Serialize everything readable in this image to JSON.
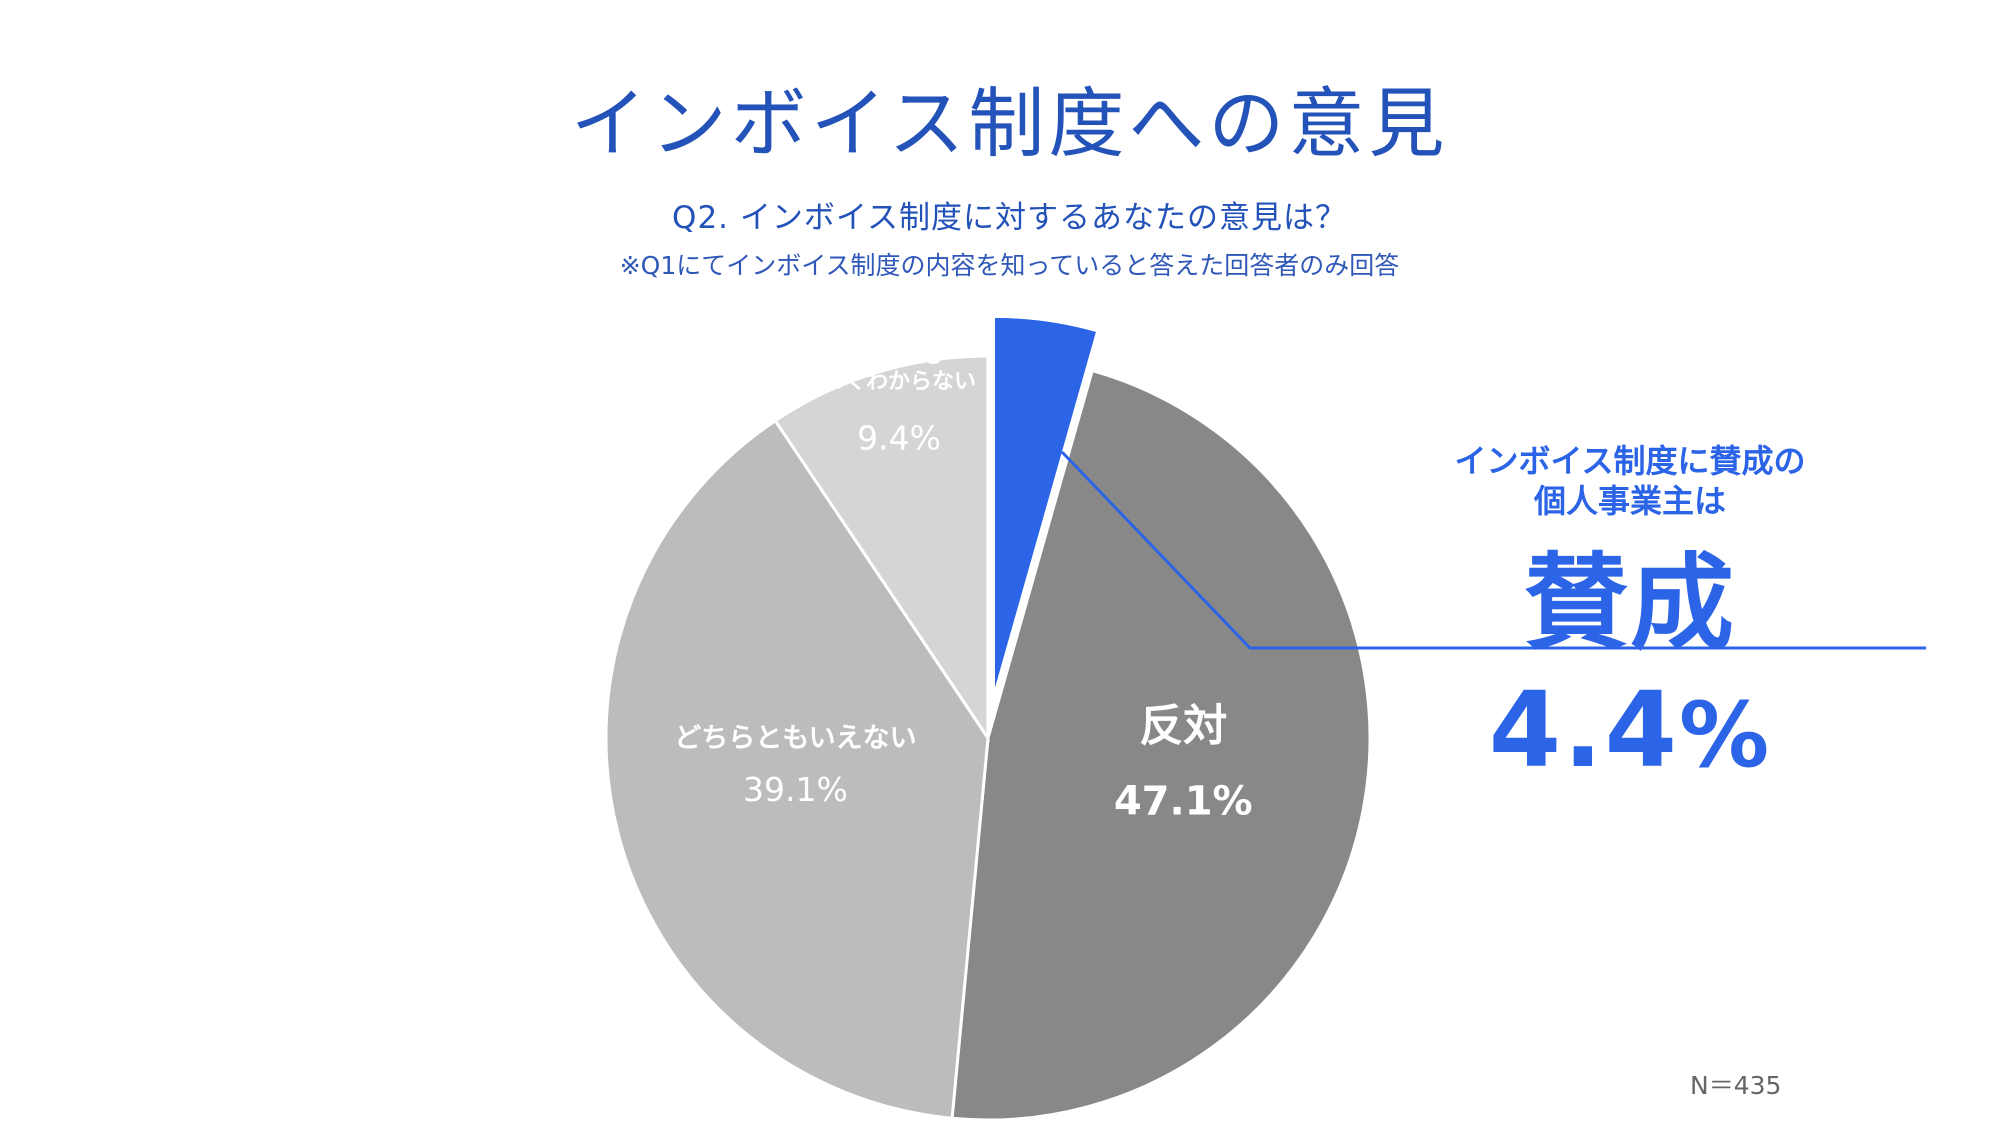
{
  "title": "インボイス制度への意見",
  "question": "Q2. インボイス制度に対するあなたの意見は？",
  "note": "※Q1にてインボイス制度の内容を知っていると答えた回答者のみ回答",
  "callout": {
    "line1": "インボイス制度に賛成の",
    "line2": "個人事業主は",
    "big_label": "賛成",
    "big_value": "4.4",
    "big_unit": "%"
  },
  "sample_size": "N＝435",
  "colors": {
    "accent": "#2b64e6",
    "title": "#2352b8"
  },
  "chart_data": {
    "type": "pie",
    "start_angle_deg": 0,
    "direction": "clockwise",
    "slices": [
      {
        "label": "賛成",
        "value": 4.4,
        "value_label": "",
        "color": "#2b64e6",
        "exploded": true
      },
      {
        "label": "反対",
        "value": 47.1,
        "value_label": "47.1%",
        "color": "#898888",
        "exploded": false
      },
      {
        "label": "どちらともいえない",
        "value": 39.1,
        "value_label": "39.1%",
        "color": "#bdbbbb",
        "exploded": false
      },
      {
        "label": "そもそも\nよくわからない",
        "value": 9.4,
        "value_label": "9.4%",
        "color": "#d6d4d4",
        "exploded": false
      }
    ]
  }
}
